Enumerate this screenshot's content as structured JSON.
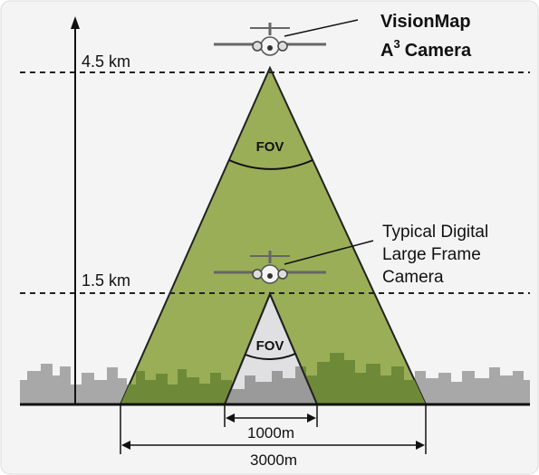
{
  "labels": {
    "vision_title": "VisionMap",
    "vision_model": "A",
    "vision_superscript": "3",
    "vision_camera": "Camera",
    "typical": [
      "Typical Digital",
      "Large Frame",
      "Camera"
    ],
    "alt_high": "4.5 km",
    "alt_low": "1.5 km",
    "fov_large": "FOV",
    "fov_small": "FOV",
    "width_small": "1000m",
    "width_large": "3000m"
  }
}
